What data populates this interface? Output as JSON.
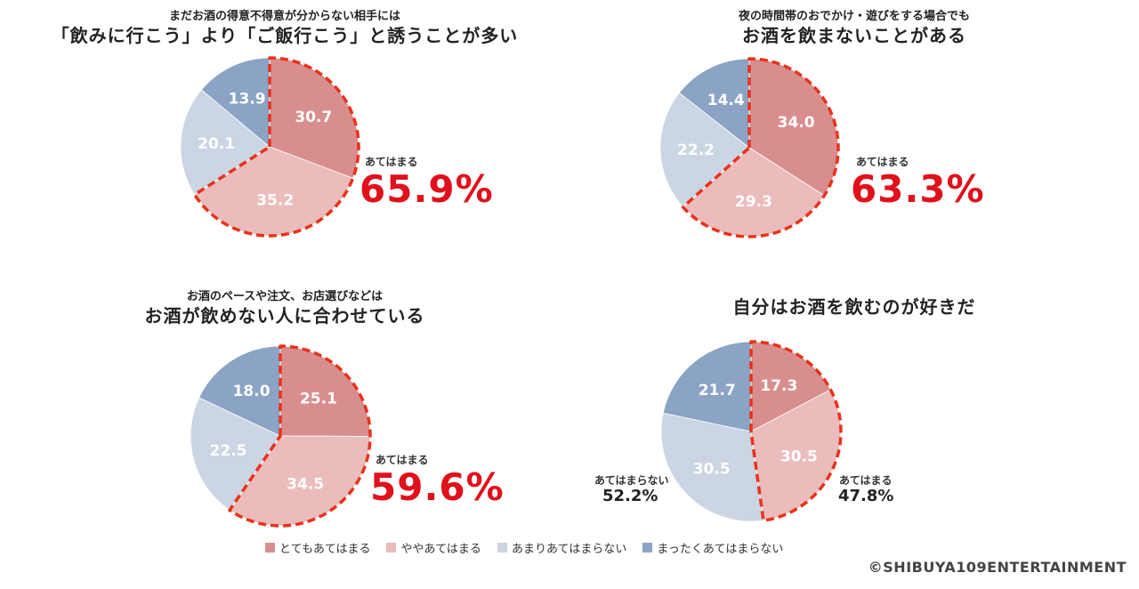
{
  "colors": {
    "totemo": "#d98e8e",
    "yaya": "#ebbcbc",
    "amari": "#cbd5e3",
    "mattaku": "#8ba3c4",
    "highlight": "#e8321a",
    "accent_text": "#e0111b"
  },
  "legend": {
    "items": [
      {
        "label": "とてもあてはまる",
        "color": "#d98e8e"
      },
      {
        "label": "ややあてはまる",
        "color": "#ebbcbc"
      },
      {
        "label": "あまりあてはまらない",
        "color": "#cbd5e3"
      },
      {
        "label": "まったくあてはまらない",
        "color": "#8ba3c4"
      }
    ]
  },
  "copyright": "©SHIBUYA109ENTERTAINMENT",
  "chart_data": [
    {
      "type": "pie",
      "subtitle": "まだお酒の得意不得意が分からない相手には",
      "title": "「飲みに行こう」より「ご飯行こう」と誘うことが多い",
      "categories": [
        "とてもあてはまる",
        "ややあてはまる",
        "あまりあてはまらない",
        "まったくあてはまらない"
      ],
      "values": [
        30.7,
        35.2,
        20.1,
        13.9
      ],
      "value_labels": [
        "30.7",
        "35.2",
        "20.1",
        "13.9"
      ],
      "callout": {
        "label": "あてはまる",
        "value": "65.9%"
      }
    },
    {
      "type": "pie",
      "subtitle": "夜の時間帯のおでかけ・遊びをする場合でも",
      "title": "お酒を飲まないことがある",
      "categories": [
        "とてもあてはまる",
        "ややあてはまる",
        "あまりあてはまらない",
        "まったくあてはまらない"
      ],
      "values": [
        34.0,
        29.3,
        22.2,
        14.4
      ],
      "value_labels": [
        "34.0",
        "29.3",
        "22.2",
        "14.4"
      ],
      "callout": {
        "label": "あてはまる",
        "value": "63.3%"
      }
    },
    {
      "type": "pie",
      "subtitle": "お酒のペースや注文、お店選びなどは",
      "title": "お酒が飲めない人に合わせている",
      "categories": [
        "とてもあてはまる",
        "ややあてはまる",
        "あまりあてはまらない",
        "まったくあてはまらない"
      ],
      "values": [
        25.1,
        34.5,
        22.5,
        18.0
      ],
      "value_labels": [
        "25.1",
        "34.5",
        "22.5",
        "18.0"
      ],
      "callout": {
        "label": "あてはまる",
        "value": "59.6%"
      }
    },
    {
      "type": "pie",
      "subtitle": "",
      "title": "自分はお酒を飲むのが好きだ",
      "categories": [
        "とてもあてはまる",
        "ややあてはまる",
        "あまりあてはまらない",
        "まったくあてはまらない"
      ],
      "values": [
        17.3,
        30.5,
        30.5,
        21.7
      ],
      "value_labels": [
        "17.3",
        "30.5",
        "30.5",
        "21.7"
      ],
      "callout": {
        "label": "あてはまる",
        "value": "47.8%"
      },
      "callout_secondary": {
        "label": "あてはまらない",
        "value": "52.2%"
      }
    }
  ]
}
